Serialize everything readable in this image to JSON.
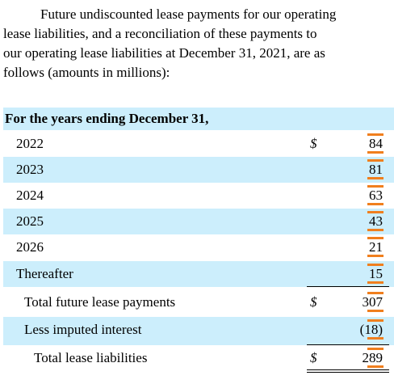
{
  "intro": {
    "lines": [
      "Future undiscounted lease payments for our operating",
      "lease liabilities, and a reconciliation of these payments to",
      "our operating lease liabilities at December 31, 2021, are as",
      "follows (amounts in millions):"
    ]
  },
  "table": {
    "header": "For the years ending December 31,",
    "rows": [
      {
        "label": "2022",
        "currency": "$",
        "amount": 84
      },
      {
        "label": "2023",
        "amount": 81
      },
      {
        "label": "2024",
        "amount": 63
      },
      {
        "label": "2025",
        "amount": 43
      },
      {
        "label": "2026",
        "amount": 21
      },
      {
        "label": "Thereafter",
        "amount": 15
      },
      {
        "label": "Total future lease payments",
        "currency": "$",
        "amount": 307
      },
      {
        "label": "Less imputed interest",
        "amount": "(18)"
      },
      {
        "label": "Total lease liabilities",
        "currency": "$",
        "amount": 289
      }
    ]
  }
}
